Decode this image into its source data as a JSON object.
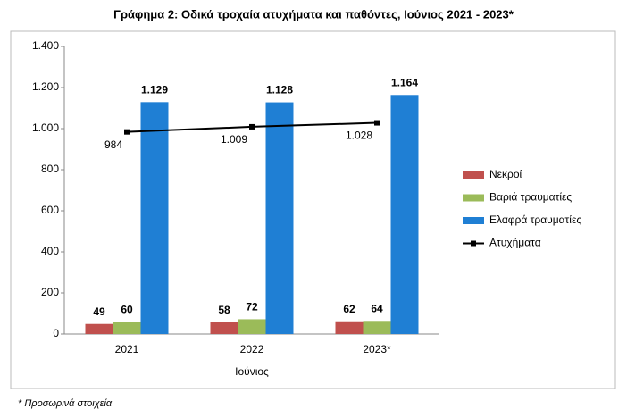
{
  "chart_data": {
    "type": "bar",
    "title": "Γράφημα 2: Οδικά τροχαία ατυχήματα και παθόντες, Ιούνιος 2021 - 2023*",
    "x_label": "Ιούνιος",
    "footnote": "* Προσωρινά στοιχεία",
    "categories": [
      "2021",
      "2022",
      "2023*"
    ],
    "series": [
      {
        "name": "Νεκροί",
        "type": "bar",
        "color": "#c0504d",
        "values": [
          49,
          58,
          62
        ]
      },
      {
        "name": "Βαριά τραυματίες",
        "type": "bar",
        "color": "#9bbb59",
        "values": [
          60,
          72,
          64
        ]
      },
      {
        "name": "Ελαφρά τραυματίες",
        "type": "bar",
        "color": "#1f7fd4",
        "values": [
          1129,
          1128,
          1164
        ],
        "value_labels": [
          "1.129",
          "1.128",
          "1.164"
        ]
      },
      {
        "name": "Ατυχήματα",
        "type": "line",
        "color": "#000000",
        "values": [
          984,
          1009,
          1028
        ],
        "value_labels": [
          "984",
          "1.009",
          "1.028"
        ]
      }
    ],
    "ylim": [
      0,
      1400
    ],
    "yticks": [
      0,
      200,
      400,
      600,
      800,
      {
        "value": 1000,
        "label": "1.000"
      },
      {
        "value": 1200,
        "label": "1.200"
      },
      {
        "value": 1400,
        "label": "1.400"
      }
    ],
    "legend": "right",
    "grid": false
  }
}
